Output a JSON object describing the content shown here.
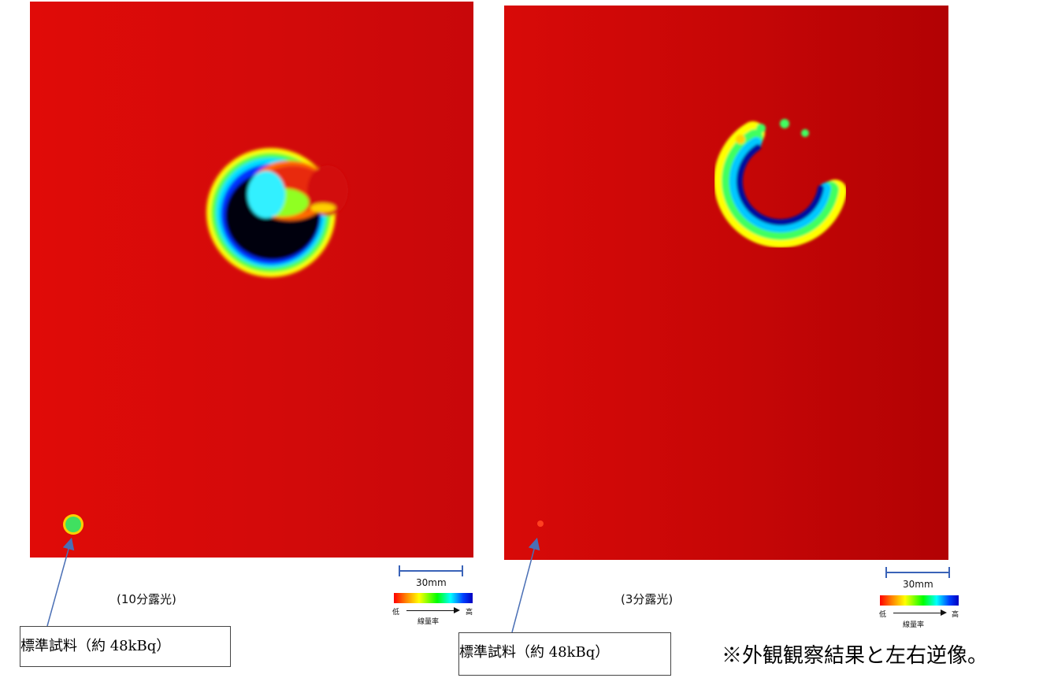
{
  "left_panel": {
    "exposure_label": "(10分露光)",
    "scale_label": "30mm"
  },
  "right_panel": {
    "exposure_label": "(3分露光)",
    "scale_label": "30mm"
  },
  "colorbar": {
    "low_label": "低",
    "high_label": "高",
    "caption": "線量率"
  },
  "callouts": [
    {
      "text": "標準試料（約 48kBq）"
    },
    {
      "text": "標準試料（約 48kBq）"
    }
  ],
  "note": "※外観観察結果と左右逆像。",
  "colors": {
    "background_red": "#d20a0a",
    "arrow": "#4a6fb5",
    "scalebar": "#3a63b8"
  }
}
